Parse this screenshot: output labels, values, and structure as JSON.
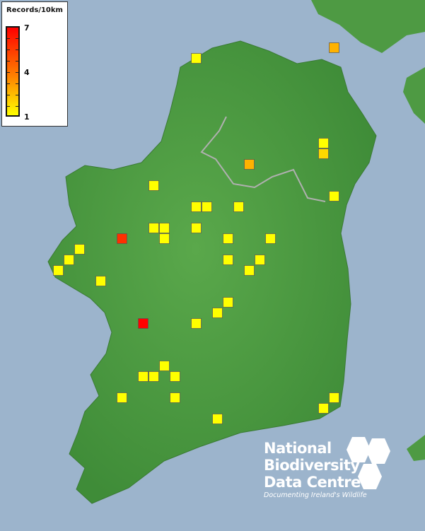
{
  "legend": {
    "title": "Records/10km",
    "max_label": "7",
    "mid_label": "4",
    "min_label": "1",
    "color_low": "#ffff00",
    "color_mid": "#ff8000",
    "color_high": "#ff0000"
  },
  "records": [
    1,
    3,
    1,
    2,
    3,
    1,
    1,
    1,
    1,
    1,
    1,
    1,
    1,
    6,
    1,
    1,
    1,
    1,
    1,
    1,
    1,
    1,
    1,
    1,
    1,
    1,
    7,
    1,
    1,
    1,
    1,
    1,
    1,
    1,
    1,
    1,
    1
  ],
  "colors": {
    "sea": "#9cb4cc",
    "land": "#4e9a43",
    "land_high": "#8fae6a"
  },
  "logo": {
    "line1": "National",
    "line2": "Biodiversity",
    "line3": "Data Centre",
    "tagline": "Documenting Ireland's Wildlife"
  }
}
